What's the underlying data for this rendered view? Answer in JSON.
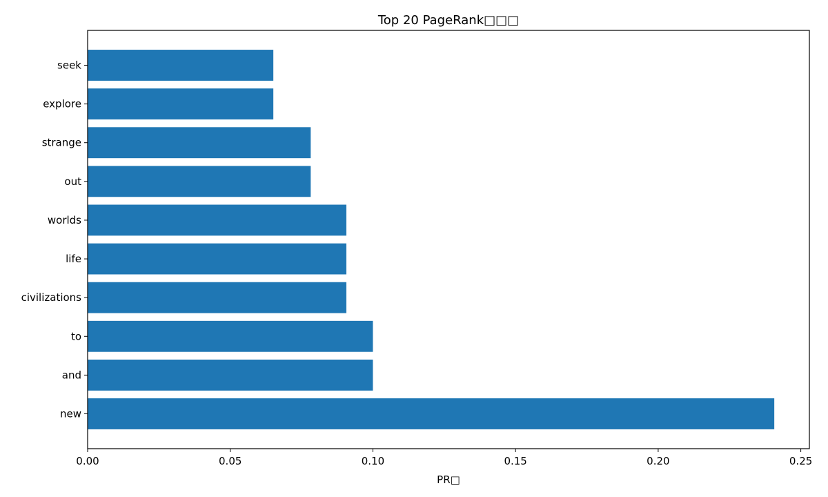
{
  "chart_data": {
    "type": "bar",
    "orientation": "horizontal",
    "title": "Top 20 PageRank□□□",
    "xlabel": "PR□",
    "ylabel": "",
    "categories": [
      "new",
      "and",
      "to",
      "civilizations",
      "life",
      "worlds",
      "out",
      "strange",
      "explore",
      "seek"
    ],
    "values": [
      0.2407,
      0.1,
      0.1,
      0.0907,
      0.0907,
      0.0907,
      0.0782,
      0.0782,
      0.0651,
      0.0651
    ],
    "xlim": [
      0,
      0.253
    ],
    "xticks": [
      0.0,
      0.05,
      0.1,
      0.15,
      0.2,
      0.25
    ],
    "xtick_labels": [
      "0.00",
      "0.05",
      "0.10",
      "0.15",
      "0.20",
      "0.25"
    ],
    "grid": false,
    "bar_color": "#1f77b4"
  }
}
